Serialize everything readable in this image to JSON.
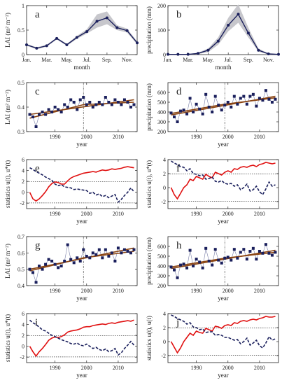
{
  "chart_data": [
    {
      "type": "line",
      "panel": "a",
      "xlabel": "month",
      "ylabel": "LAI (m² m⁻²)",
      "xlim": [
        1,
        12
      ],
      "ylim": [
        0,
        1
      ],
      "x": [
        1,
        2,
        3,
        4,
        5,
        6,
        7,
        8,
        9,
        10,
        11,
        12
      ],
      "xticks": [
        1,
        3,
        5,
        7,
        9,
        11
      ],
      "xticklabels": [
        "Jan.",
        "Mar.",
        "May.",
        "Jul.",
        "Sep.",
        "Nov."
      ],
      "yticks": [
        0,
        0.5,
        1
      ],
      "yticklabels": [
        "0",
        "0.5",
        "1"
      ],
      "values": [
        0.2,
        0.13,
        0.18,
        0.33,
        0.2,
        0.35,
        0.47,
        0.68,
        0.75,
        0.55,
        0.49,
        0.24
      ],
      "band_upper": [
        0.22,
        0.15,
        0.2,
        0.35,
        0.22,
        0.38,
        0.52,
        0.82,
        0.88,
        0.6,
        0.53,
        0.27
      ],
      "band_lower": [
        0.18,
        0.11,
        0.16,
        0.31,
        0.18,
        0.32,
        0.43,
        0.55,
        0.62,
        0.5,
        0.45,
        0.21
      ]
    },
    {
      "type": "line",
      "panel": "b",
      "xlabel": "month",
      "ylabel": "precipitation (mm)",
      "xlim": [
        1,
        12
      ],
      "ylim": [
        0,
        200
      ],
      "x": [
        1,
        2,
        3,
        4,
        5,
        6,
        7,
        8,
        9,
        10,
        11,
        12
      ],
      "xticks": [
        1,
        3,
        5,
        7,
        9,
        11
      ],
      "xticklabels": [
        "Jan.",
        "Mar.",
        "May.",
        "Jul.",
        "Sep.",
        "Nov."
      ],
      "yticks": [
        0,
        100,
        200
      ],
      "yticklabels": [
        "0",
        "100",
        "200"
      ],
      "values": [
        1,
        1,
        1,
        5,
        18,
        55,
        120,
        165,
        88,
        18,
        3,
        1
      ],
      "band_upper": [
        2,
        2,
        2,
        8,
        25,
        70,
        150,
        205,
        110,
        25,
        5,
        2
      ],
      "band_lower": [
        0,
        0,
        0,
        2,
        10,
        40,
        95,
        130,
        70,
        12,
        1,
        0
      ]
    },
    {
      "type": "line",
      "panel": "c",
      "xlabel": "year",
      "ylabel": "LAI (m² m⁻²)",
      "xlim": [
        1981,
        2016
      ],
      "ylim": [
        0.3,
        0.5
      ],
      "xticks": [
        1990,
        2000,
        2010
      ],
      "xticklabels": [
        "1990",
        "2000",
        "2010"
      ],
      "yticks": [
        0.3,
        0.4,
        0.5
      ],
      "yticklabels": [
        "0.3",
        "0.4",
        "0.5"
      ],
      "x": [
        1982,
        1983,
        1984,
        1985,
        1986,
        1987,
        1988,
        1989,
        1990,
        1991,
        1992,
        1993,
        1994,
        1995,
        1996,
        1997,
        1998,
        1999,
        2000,
        2001,
        2002,
        2003,
        2004,
        2005,
        2006,
        2007,
        2008,
        2009,
        2010,
        2011,
        2012,
        2013,
        2014,
        2015
      ],
      "values": [
        0.37,
        0.36,
        0.32,
        0.37,
        0.38,
        0.37,
        0.39,
        0.38,
        0.4,
        0.39,
        0.38,
        0.41,
        0.4,
        0.43,
        0.42,
        0.39,
        0.43,
        0.44,
        0.41,
        0.42,
        0.4,
        0.41,
        0.42,
        0.41,
        0.44,
        0.42,
        0.41,
        0.43,
        0.42,
        0.41,
        0.43,
        0.42,
        0.4,
        0.41
      ],
      "trend1": [
        [
          1982,
          0.37
        ],
        [
          2015,
          0.43
        ]
      ],
      "trend2": [
        [
          1982,
          0.355
        ],
        [
          1999,
          0.41
        ],
        [
          2015,
          0.42
        ]
      ],
      "breakpoint": 1999
    },
    {
      "type": "line",
      "panel": "d",
      "xlabel": "year",
      "ylabel": "precipitation (mm)",
      "xlim": [
        1981,
        2016
      ],
      "ylim": [
        200,
        700
      ],
      "xticks": [
        1990,
        2000,
        2010
      ],
      "xticklabels": [
        "1990",
        "2000",
        "2010"
      ],
      "yticks": [
        200,
        300,
        400,
        500,
        600
      ],
      "yticklabels": [
        "200",
        "300",
        "400",
        "500",
        "600"
      ],
      "x": [
        1982,
        1983,
        1984,
        1985,
        1986,
        1987,
        1988,
        1989,
        1990,
        1991,
        1992,
        1993,
        1994,
        1995,
        1996,
        1997,
        1998,
        1999,
        2000,
        2001,
        2002,
        2003,
        2004,
        2005,
        2006,
        2007,
        2008,
        2009,
        2010,
        2011,
        2012,
        2013,
        2014,
        2015
      ],
      "values": [
        390,
        350,
        300,
        410,
        420,
        380,
        540,
        400,
        480,
        430,
        380,
        580,
        450,
        400,
        560,
        470,
        420,
        470,
        500,
        450,
        560,
        480,
        540,
        560,
        480,
        560,
        580,
        460,
        540,
        520,
        620,
        530,
        500,
        530
      ],
      "trend1": [
        [
          1982,
          370
        ],
        [
          2015,
          560
        ]
      ],
      "trend2": [
        [
          1982,
          385
        ],
        [
          1999,
          480
        ],
        [
          2015,
          545
        ]
      ],
      "breakpoint": 1999
    },
    {
      "type": "line",
      "panel": "e",
      "xlabel": "year",
      "ylabel": "statistics u(t), u*(t)",
      "xlim": [
        1981,
        2016
      ],
      "ylim": [
        -3,
        6
      ],
      "xticks": [
        1990,
        2000,
        2010
      ],
      "xticklabels": [
        "1990",
        "2000",
        "2010"
      ],
      "yticks": [
        -2,
        0,
        2,
        4,
        6
      ],
      "yticklabels": [
        "-2",
        "0",
        "2",
        "4",
        "6"
      ],
      "significance": [
        -1.96,
        1.96
      ],
      "x": [
        1982,
        1983,
        1984,
        1985,
        1986,
        1987,
        1988,
        1989,
        1990,
        1991,
        1992,
        1993,
        1994,
        1995,
        1996,
        1997,
        1998,
        1999,
        2000,
        2001,
        2002,
        2003,
        2004,
        2005,
        2006,
        2007,
        2008,
        2009,
        2010,
        2011,
        2012,
        2013,
        2014,
        2015
      ],
      "series": [
        {
          "values": [
            0,
            -1.2,
            -1.6,
            -1.2,
            -0.6,
            0.1,
            1.0,
            1.6,
            1.9,
            1.8,
            1.5,
            1.5,
            2.1,
            2.6,
            2.9,
            3.1,
            3.3,
            3.5,
            3.6,
            3.7,
            3.8,
            3.7,
            3.9,
            4.1,
            4.0,
            4.1,
            4.3,
            4.2,
            4.3,
            4.4,
            4.6,
            4.7,
            4.6,
            4.5
          ]
        },
        {
          "values": [
            4.5,
            4.2,
            3.8,
            3.5,
            3.2,
            2.8,
            2.5,
            2.2,
            1.5,
            1.2,
            1.4,
            1.0,
            0.9,
            0.8,
            0.5,
            0.6,
            0.5,
            0.4,
            0.3,
            -0.2,
            0.0,
            -0.5,
            -0.3,
            -0.8,
            -0.6,
            -1.0,
            -0.7,
            -0.4,
            -1.8,
            -1.3,
            -0.6,
            0.0,
            0.8,
            0.1
          ]
        }
      ]
    },
    {
      "type": "line",
      "panel": "f",
      "xlabel": "year",
      "ylabel": "statistics u(t), u*(t)",
      "xlim": [
        1981,
        2016
      ],
      "ylim": [
        -3,
        4
      ],
      "xticks": [
        1990,
        2000,
        2010
      ],
      "xticklabels": [
        "1990",
        "2000",
        "2010"
      ],
      "yticks": [
        -2,
        0,
        2,
        4
      ],
      "yticklabels": [
        "-2",
        "0",
        "2",
        "4"
      ],
      "significance": [
        -1.96,
        1.96
      ],
      "x": [
        1982,
        1983,
        1984,
        1985,
        1986,
        1987,
        1988,
        1989,
        1990,
        1991,
        1992,
        1993,
        1994,
        1995,
        1996,
        1997,
        1998,
        1999,
        2000,
        2001,
        2002,
        2003,
        2004,
        2005,
        2006,
        2007,
        2008,
        2009,
        2010,
        2011,
        2012,
        2013,
        2014,
        2015
      ],
      "series": [
        {
          "values": [
            0,
            -1.0,
            -1.6,
            -0.8,
            0.0,
            0.4,
            1.2,
            1.0,
            1.6,
            1.4,
            1.2,
            1.9,
            1.6,
            1.4,
            2.2,
            2.0,
            1.8,
            2.2,
            2.4,
            2.2,
            2.7,
            2.6,
            2.9,
            3.0,
            2.9,
            3.1,
            3.2,
            3.0,
            3.3,
            3.4,
            3.6,
            3.5,
            3.4,
            3.5
          ]
        },
        {
          "values": [
            3.8,
            3.5,
            3.3,
            3.0,
            2.9,
            2.4,
            2.7,
            2.0,
            1.9,
            1.7,
            1.8,
            1.2,
            1.3,
            1.5,
            0.9,
            0.8,
            1.0,
            0.6,
            0.5,
            0.6,
            0.2,
            0.4,
            -0.3,
            0.0,
            0.5,
            -0.5,
            -0.3,
            0.2,
            -0.6,
            -1.0,
            -0.2,
            0.8,
            0.2,
            0.4
          ]
        }
      ]
    },
    {
      "type": "line",
      "panel": "g",
      "xlabel": "year",
      "ylabel": "LAI (m² m⁻²)",
      "xlim": [
        1981,
        2016
      ],
      "ylim": [
        0.4,
        0.7
      ],
      "xticks": [
        1990,
        2000,
        2010
      ],
      "xticklabels": [
        "1990",
        "2000",
        "2010"
      ],
      "yticks": [
        0.4,
        0.5,
        0.6,
        0.7
      ],
      "yticklabels": [
        "0.4",
        "0.5",
        "0.6",
        "0.7"
      ],
      "x": [
        1982,
        1983,
        1984,
        1985,
        1986,
        1987,
        1988,
        1989,
        1990,
        1991,
        1992,
        1993,
        1994,
        1995,
        1996,
        1997,
        1998,
        1999,
        2000,
        2001,
        2002,
        2003,
        2004,
        2005,
        2006,
        2007,
        2008,
        2009,
        2010,
        2011,
        2012,
        2013,
        2014,
        2015
      ],
      "values": [
        0.5,
        0.48,
        0.42,
        0.52,
        0.5,
        0.53,
        0.56,
        0.55,
        0.53,
        0.51,
        0.52,
        0.55,
        0.65,
        0.56,
        0.54,
        0.57,
        0.55,
        0.62,
        0.58,
        0.57,
        0.6,
        0.59,
        0.62,
        0.57,
        0.62,
        0.58,
        0.6,
        0.55,
        0.63,
        0.6,
        0.62,
        0.61,
        0.6,
        0.62
      ],
      "trend1": [
        [
          1982,
          0.5
        ],
        [
          2015,
          0.63
        ]
      ],
      "trend2": [
        [
          1982,
          0.49
        ],
        [
          1999,
          0.57
        ],
        [
          2015,
          0.61
        ]
      ],
      "breakpoint": 1999
    },
    {
      "type": "line",
      "panel": "h",
      "xlabel": "year",
      "ylabel": "precipitation (mm)",
      "xlim": [
        1981,
        2016
      ],
      "ylim": [
        200,
        700
      ],
      "xticks": [
        1990,
        2000,
        2010
      ],
      "xticklabels": [
        "1990",
        "2000",
        "2010"
      ],
      "yticks": [
        200,
        300,
        400,
        500,
        600
      ],
      "yticklabels": [
        "200",
        "300",
        "400",
        "500",
        "600"
      ],
      "x": [
        1982,
        1983,
        1984,
        1985,
        1986,
        1987,
        1988,
        1989,
        1990,
        1991,
        1992,
        1993,
        1994,
        1995,
        1996,
        1997,
        1998,
        1999,
        2000,
        2001,
        2002,
        2003,
        2004,
        2005,
        2006,
        2007,
        2008,
        2009,
        2010,
        2011,
        2012,
        2013,
        2014,
        2015
      ],
      "values": [
        390,
        360,
        280,
        410,
        420,
        380,
        560,
        400,
        470,
        440,
        380,
        580,
        450,
        410,
        570,
        460,
        430,
        480,
        490,
        460,
        570,
        480,
        540,
        570,
        470,
        550,
        580,
        470,
        550,
        530,
        620,
        530,
        510,
        540
      ],
      "trend1": [
        [
          1982,
          375
        ],
        [
          2015,
          560
        ]
      ],
      "trend2": [
        [
          1982,
          390
        ],
        [
          1999,
          480
        ],
        [
          2015,
          540
        ]
      ],
      "breakpoint": 1999
    },
    {
      "type": "line",
      "panel": "i",
      "xlabel": "year",
      "ylabel": "statistics u(t), u*(t)",
      "xlim": [
        1981,
        2016
      ],
      "ylim": [
        -3,
        6
      ],
      "xticks": [
        1990,
        2000,
        2010
      ],
      "xticklabels": [
        "1990",
        "2000",
        "2010"
      ],
      "yticks": [
        -2,
        0,
        2,
        4,
        6
      ],
      "yticklabels": [
        "-2",
        "0",
        "2",
        "4",
        "6"
      ],
      "significance": [
        -1.96,
        1.96
      ],
      "x": [
        1982,
        1983,
        1984,
        1985,
        1986,
        1987,
        1988,
        1989,
        1990,
        1991,
        1992,
        1993,
        1994,
        1995,
        1996,
        1997,
        1998,
        1999,
        2000,
        2001,
        2002,
        2003,
        2004,
        2005,
        2006,
        2007,
        2008,
        2009,
        2010,
        2011,
        2012,
        2013,
        2014,
        2015
      ],
      "series": [
        {
          "values": [
            0,
            -1.0,
            -1.8,
            -1.0,
            -0.4,
            0.3,
            1.1,
            1.5,
            1.7,
            1.6,
            1.8,
            2.1,
            2.6,
            2.8,
            2.9,
            3.0,
            3.2,
            3.5,
            3.6,
            3.6,
            3.8,
            3.9,
            4.0,
            4.1,
            4.0,
            4.2,
            4.3,
            4.2,
            4.4,
            4.5,
            4.6,
            4.7,
            4.6,
            4.8
          ]
        },
        {
          "values": [
            4.8,
            4.3,
            4.0,
            3.5,
            3.0,
            2.8,
            2.4,
            2.0,
            1.8,
            1.5,
            1.2,
            1.0,
            0.8,
            0.5,
            0.4,
            0.6,
            0.2,
            0.1,
            0.4,
            0.0,
            -0.4,
            -0.2,
            -0.6,
            -0.8,
            -0.5,
            -1.0,
            -0.8,
            -0.4,
            -1.6,
            -1.2,
            -0.4,
            0.2,
            0.9,
            0.2
          ]
        }
      ]
    },
    {
      "type": "line",
      "panel": "j",
      "xlabel": "year",
      "ylabel": "statistics u(t), u(t)",
      "xlim": [
        1981,
        2016
      ],
      "ylim": [
        -3,
        4
      ],
      "xticks": [
        1990,
        2000,
        2010
      ],
      "xticklabels": [
        "1990",
        "2000",
        "2010"
      ],
      "yticks": [
        -2,
        0,
        2,
        4
      ],
      "yticklabels": [
        "-2",
        "0",
        "2",
        "4"
      ],
      "significance": [
        -1.96,
        1.96
      ],
      "x": [
        1982,
        1983,
        1984,
        1985,
        1986,
        1987,
        1988,
        1989,
        1990,
        1991,
        1992,
        1993,
        1994,
        1995,
        1996,
        1997,
        1998,
        1999,
        2000,
        2001,
        2002,
        2003,
        2004,
        2005,
        2006,
        2007,
        2008,
        2009,
        2010,
        2011,
        2012,
        2013,
        2014,
        2015
      ],
      "series": [
        {
          "values": [
            0,
            -0.8,
            -1.6,
            -0.9,
            0.0,
            0.6,
            1.2,
            0.9,
            1.5,
            1.3,
            1.2,
            1.9,
            1.7,
            1.5,
            2.2,
            2.1,
            1.9,
            2.3,
            2.4,
            2.3,
            2.7,
            2.6,
            2.9,
            3.0,
            2.9,
            3.1,
            3.2,
            3.1,
            3.3,
            3.4,
            3.6,
            3.5,
            3.5,
            3.6
          ]
        },
        {
          "values": [
            3.8,
            3.6,
            3.3,
            3.1,
            2.9,
            2.5,
            2.7,
            2.1,
            2.0,
            1.7,
            1.8,
            1.3,
            1.4,
            1.4,
            0.9,
            1.0,
            0.9,
            0.6,
            0.6,
            0.4,
            0.2,
            0.3,
            -0.3,
            0.0,
            0.5,
            -0.5,
            -0.2,
            0.2,
            -0.6,
            -0.9,
            -0.2,
            0.7,
            0.2,
            0.4
          ]
        }
      ]
    }
  ]
}
